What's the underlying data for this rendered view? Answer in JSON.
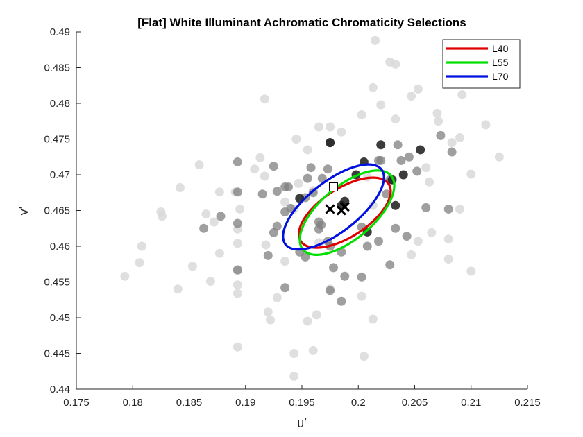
{
  "chart_data": {
    "type": "scatter",
    "title": "[Flat] White Illuminant Achromatic Chromaticity Selections",
    "xlabel": "u′",
    "ylabel": "v′",
    "xlim": [
      0.175,
      0.215
    ],
    "ylim": [
      0.44,
      0.49
    ],
    "xticks": [
      "0.175",
      "0.18",
      "0.185",
      "0.19",
      "0.195",
      "0.2",
      "0.205",
      "0.21",
      "0.215"
    ],
    "yticks": [
      "0.44",
      "0.445",
      "0.45",
      "0.455",
      "0.46",
      "0.465",
      "0.47",
      "0.475",
      "0.48",
      "0.485",
      "0.49"
    ],
    "grid": false,
    "legend_position": "top-right",
    "colors": {
      "L40": "#e00000",
      "L55": "#00e000",
      "L70": "#0010e0",
      "light_points": "#d9d9d9",
      "mid_points": "#7f7f7f",
      "dark_points": "#1a1a1a"
    },
    "points_light": [
      [
        0.2015,
        0.4888
      ],
      [
        0.2028,
        0.4858
      ],
      [
        0.2033,
        0.4855
      ],
      [
        0.1917,
        0.4806
      ],
      [
        0.2053,
        0.482
      ],
      [
        0.2047,
        0.481
      ],
      [
        0.2092,
        0.4812
      ],
      [
        0.2013,
        0.4822
      ],
      [
        0.202,
        0.4798
      ],
      [
        0.2003,
        0.4784
      ],
      [
        0.1975,
        0.4767
      ],
      [
        0.1965,
        0.4767
      ],
      [
        0.2033,
        0.4778
      ],
      [
        0.207,
        0.4786
      ],
      [
        0.2071,
        0.4775
      ],
      [
        0.2113,
        0.477
      ],
      [
        0.2125,
        0.4725
      ],
      [
        0.1945,
        0.475
      ],
      [
        0.1955,
        0.4735
      ],
      [
        0.1985,
        0.476
      ],
      [
        0.209,
        0.4752
      ],
      [
        0.2083,
        0.4745
      ],
      [
        0.206,
        0.471
      ],
      [
        0.1859,
        0.4714
      ],
      [
        0.1913,
        0.4724
      ],
      [
        0.1908,
        0.4708
      ],
      [
        0.1917,
        0.4698
      ],
      [
        0.1947,
        0.4688
      ],
      [
        0.196,
        0.4678
      ],
      [
        0.2008,
        0.4697
      ],
      [
        0.2063,
        0.469
      ],
      [
        0.21,
        0.4701
      ],
      [
        0.1842,
        0.4682
      ],
      [
        0.1865,
        0.4645
      ],
      [
        0.1877,
        0.4676
      ],
      [
        0.1891,
        0.4676
      ],
      [
        0.1895,
        0.4652
      ],
      [
        0.1935,
        0.4662
      ],
      [
        0.1825,
        0.4648
      ],
      [
        0.1826,
        0.4642
      ],
      [
        0.1893,
        0.4624
      ],
      [
        0.1943,
        0.4652
      ],
      [
        0.1872,
        0.4634
      ],
      [
        0.2013,
        0.4657
      ],
      [
        0.209,
        0.4652
      ],
      [
        0.2065,
        0.4619
      ],
      [
        0.2053,
        0.4607
      ],
      [
        0.1893,
        0.4604
      ],
      [
        0.1808,
        0.46
      ],
      [
        0.1806,
        0.4577
      ],
      [
        0.1877,
        0.459
      ],
      [
        0.1918,
        0.4602
      ],
      [
        0.1935,
        0.4579
      ],
      [
        0.1965,
        0.4605
      ],
      [
        0.208,
        0.461
      ],
      [
        0.208,
        0.4582
      ],
      [
        0.2047,
        0.4588
      ],
      [
        0.1793,
        0.4558
      ],
      [
        0.1853,
        0.4572
      ],
      [
        0.1893,
        0.4566
      ],
      [
        0.1869,
        0.4551
      ],
      [
        0.184,
        0.454
      ],
      [
        0.1893,
        0.4546
      ],
      [
        0.1893,
        0.4534
      ],
      [
        0.1928,
        0.4528
      ],
      [
        0.1975,
        0.454
      ],
      [
        0.2003,
        0.453
      ],
      [
        0.21,
        0.4565
      ],
      [
        0.192,
        0.4508
      ],
      [
        0.1963,
        0.4504
      ],
      [
        0.2013,
        0.4498
      ],
      [
        0.1955,
        0.4495
      ],
      [
        0.1893,
        0.4459
      ],
      [
        0.1943,
        0.445
      ],
      [
        0.196,
        0.4454
      ],
      [
        0.2005,
        0.4446
      ],
      [
        0.1943,
        0.4418
      ],
      [
        0.1922,
        0.4497
      ]
    ],
    "points_mid": [
      [
        0.1975,
        0.4745
      ],
      [
        0.1968,
        0.4695
      ],
      [
        0.1958,
        0.471
      ],
      [
        0.1973,
        0.4708
      ],
      [
        0.1893,
        0.4718
      ],
      [
        0.1925,
        0.4712
      ],
      [
        0.1955,
        0.4695
      ],
      [
        0.1938,
        0.4683
      ],
      [
        0.202,
        0.472
      ],
      [
        0.2018,
        0.472
      ],
      [
        0.2038,
        0.472
      ],
      [
        0.2045,
        0.4725
      ],
      [
        0.2052,
        0.4705
      ],
      [
        0.2073,
        0.4755
      ],
      [
        0.2035,
        0.4742
      ],
      [
        0.2083,
        0.4732
      ],
      [
        0.2028,
        0.4693
      ],
      [
        0.1935,
        0.4683
      ],
      [
        0.1928,
        0.4677
      ],
      [
        0.196,
        0.4675
      ],
      [
        0.1953,
        0.4668
      ],
      [
        0.194,
        0.4653
      ],
      [
        0.1915,
        0.4673
      ],
      [
        0.1893,
        0.4676
      ],
      [
        0.1878,
        0.4642
      ],
      [
        0.1863,
        0.4625
      ],
      [
        0.1893,
        0.4632
      ],
      [
        0.1928,
        0.4628
      ],
      [
        0.1935,
        0.4648
      ],
      [
        0.1965,
        0.4634
      ],
      [
        0.1967,
        0.463
      ],
      [
        0.1965,
        0.4624
      ],
      [
        0.1973,
        0.4607
      ],
      [
        0.1975,
        0.46
      ],
      [
        0.192,
        0.4587
      ],
      [
        0.1925,
        0.4619
      ],
      [
        0.1948,
        0.4592
      ],
      [
        0.1953,
        0.4585
      ],
      [
        0.1985,
        0.4592
      ],
      [
        0.2003,
        0.4627
      ],
      [
        0.2033,
        0.4625
      ],
      [
        0.2008,
        0.46
      ],
      [
        0.2018,
        0.4607
      ],
      [
        0.2043,
        0.4614
      ],
      [
        0.206,
        0.4654
      ],
      [
        0.208,
        0.4652
      ],
      [
        0.2028,
        0.4574
      ],
      [
        0.1988,
        0.4558
      ],
      [
        0.1975,
        0.4538
      ],
      [
        0.1978,
        0.457
      ],
      [
        0.1985,
        0.4523
      ],
      [
        0.2003,
        0.4557
      ],
      [
        0.1893,
        0.4567
      ],
      [
        0.1935,
        0.4542
      ],
      [
        0.2025,
        0.4673
      ]
    ],
    "points_dark": [
      [
        0.1975,
        0.4745
      ],
      [
        0.1998,
        0.47
      ],
      [
        0.2005,
        0.4718
      ],
      [
        0.202,
        0.4742
      ],
      [
        0.203,
        0.4693
      ],
      [
        0.204,
        0.47
      ],
      [
        0.1948,
        0.4667
      ],
      [
        0.1988,
        0.4663
      ],
      [
        0.1985,
        0.4657
      ],
      [
        0.2033,
        0.4657
      ],
      [
        0.2008,
        0.462
      ],
      [
        0.2055,
        0.4735
      ]
    ],
    "marker_square": [
      0.1978,
      0.4683
    ],
    "marker_x": [
      [
        0.1975,
        0.4652
      ],
      [
        0.1985,
        0.465
      ],
      [
        0.1988,
        0.4655
      ]
    ],
    "series": [
      {
        "name": "L40",
        "center": [
          0.1988,
          0.4647
        ],
        "semi_major": 0.0093,
        "semi_minor": 0.0043,
        "angle_deg": 33
      },
      {
        "name": "L55",
        "center": [
          0.199,
          0.4647
        ],
        "semi_major": 0.0102,
        "semi_minor": 0.0047,
        "angle_deg": 40
      },
      {
        "name": "L70",
        "center": [
          0.1978,
          0.4655
        ],
        "semi_major": 0.0108,
        "semi_minor": 0.0045,
        "angle_deg": 38
      }
    ]
  }
}
